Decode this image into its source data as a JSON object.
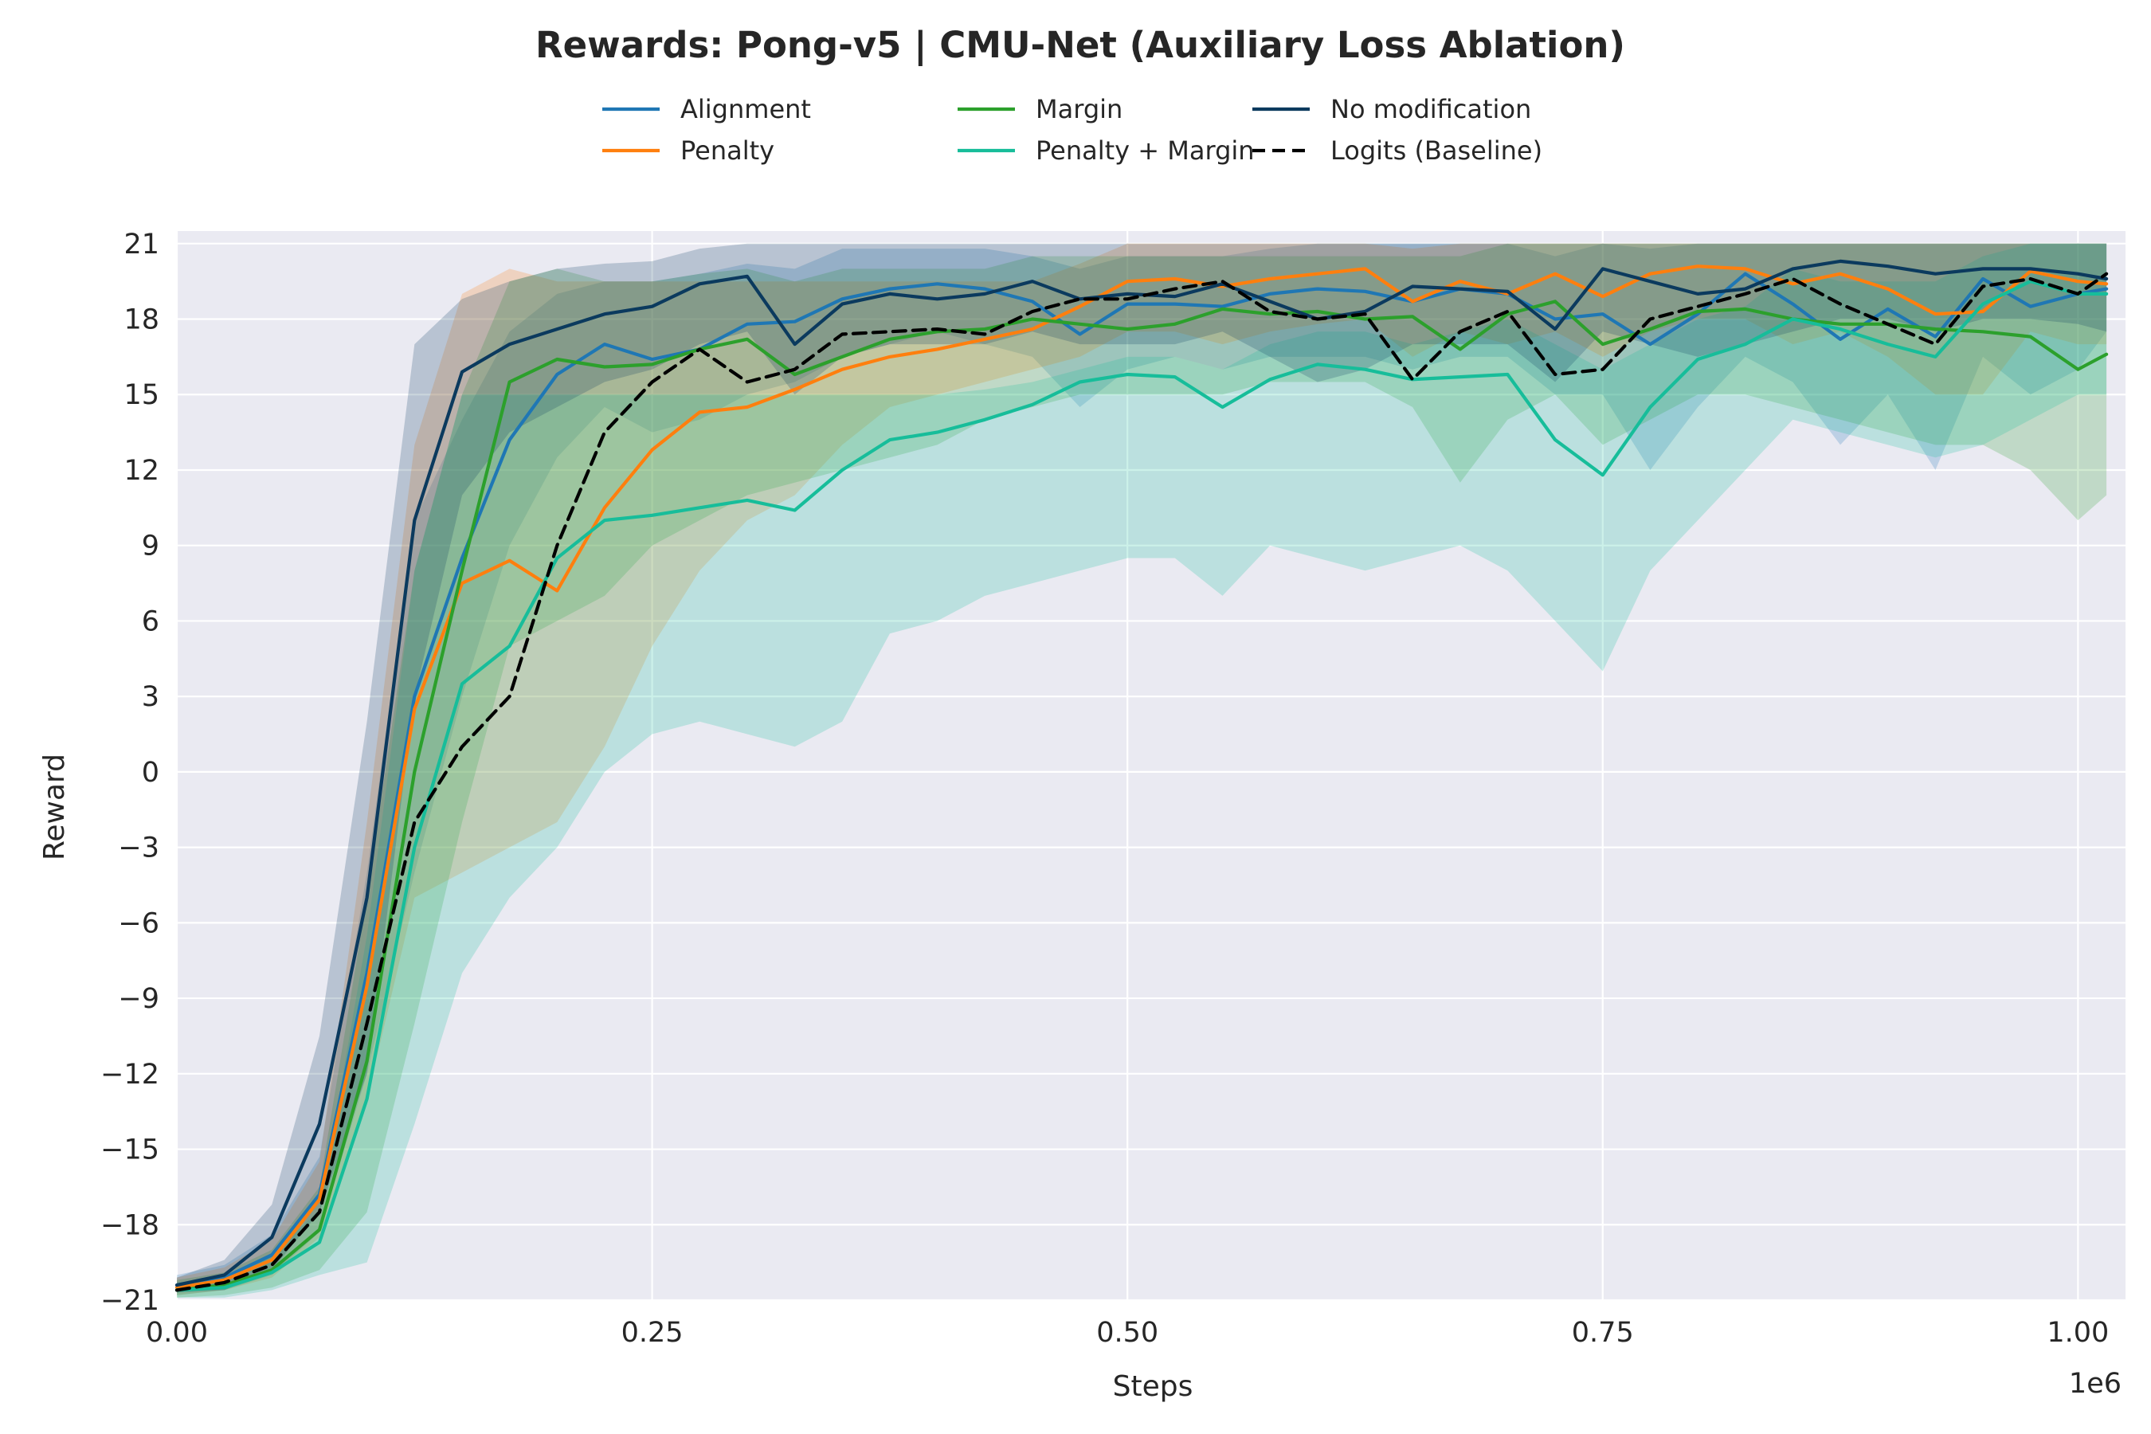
{
  "chart_data": {
    "type": "line",
    "title": "Rewards: Pong-v5 | CMU-Net (Auxiliary Loss Ablation)",
    "xlabel": "Steps",
    "ylabel": "Reward",
    "x_offset_label": "1e6",
    "xlim": [
      0,
      1.025
    ],
    "ylim": [
      -21,
      21.5
    ],
    "xticks": [
      0.0,
      0.25,
      0.5,
      0.75,
      1.0
    ],
    "xtick_labels": [
      "0.00",
      "0.25",
      "0.50",
      "0.75",
      "1.00"
    ],
    "yticks": [
      -21,
      -18,
      -15,
      -12,
      -9,
      -6,
      -3,
      0,
      3,
      6,
      9,
      12,
      15,
      18,
      21
    ],
    "ytick_labels": [
      "−21",
      "−18",
      "−15",
      "−12",
      "−9",
      "−6",
      "−3",
      "0",
      "3",
      "6",
      "9",
      "12",
      "15",
      "18",
      "21"
    ],
    "grid": true,
    "legend_position": "top-center",
    "x": [
      0.0,
      0.025,
      0.05,
      0.075,
      0.1,
      0.125,
      0.15,
      0.175,
      0.2,
      0.225,
      0.25,
      0.275,
      0.3,
      0.325,
      0.35,
      0.375,
      0.4,
      0.425,
      0.45,
      0.475,
      0.5,
      0.525,
      0.55,
      0.575,
      0.6,
      0.625,
      0.65,
      0.675,
      0.7,
      0.725,
      0.75,
      0.775,
      0.8,
      0.825,
      0.85,
      0.875,
      0.9,
      0.925,
      0.95,
      0.975,
      1.0,
      1.015
    ],
    "series": [
      {
        "name": "Alignment",
        "color": "#1f77b4",
        "dash": false,
        "values": [
          -20.4,
          -20.1,
          -19.2,
          -16.8,
          -8.0,
          3.0,
          8.5,
          13.2,
          15.8,
          17.0,
          16.4,
          16.8,
          17.8,
          17.9,
          18.8,
          19.2,
          19.4,
          19.2,
          18.7,
          17.4,
          18.6,
          18.6,
          18.5,
          19.0,
          19.2,
          19.1,
          18.7,
          19.2,
          19.0,
          18.0,
          18.2,
          17.0,
          18.2,
          19.8,
          18.6,
          17.2,
          18.4,
          17.3,
          19.6,
          18.5,
          19.0,
          19.2
        ],
        "lower": [
          -20.8,
          -20.6,
          -20.0,
          -18.3,
          -12.0,
          -4.0,
          3.0,
          9.0,
          12.5,
          14.5,
          13.5,
          14.0,
          15.0,
          15.5,
          16.5,
          17.0,
          17.5,
          17.0,
          16.5,
          14.5,
          16.0,
          16.5,
          16.0,
          16.5,
          16.5,
          16.5,
          16.0,
          16.5,
          16.5,
          15.0,
          15.0,
          12.0,
          14.5,
          16.5,
          15.5,
          13.0,
          15.0,
          12.0,
          16.5,
          15.0,
          16.0,
          17.5
        ],
        "upper": [
          -20.0,
          -19.6,
          -18.4,
          -15.3,
          -4.0,
          10.0,
          14.0,
          17.5,
          19.0,
          19.5,
          19.5,
          19.8,
          20.2,
          20.0,
          20.8,
          20.8,
          20.8,
          20.8,
          20.5,
          20.0,
          20.5,
          20.5,
          20.5,
          20.8,
          21.0,
          21.0,
          21.0,
          21.0,
          21.0,
          20.5,
          21.0,
          20.8,
          21.0,
          21.0,
          21.0,
          21.0,
          21.0,
          21.0,
          21.0,
          21.0,
          21.0,
          21.0
        ]
      },
      {
        "name": "Penalty",
        "color": "#ff7f0e",
        "dash": false,
        "values": [
          -20.5,
          -20.2,
          -19.4,
          -17.0,
          -8.5,
          2.5,
          7.5,
          8.4,
          7.2,
          10.5,
          12.8,
          14.3,
          14.5,
          15.2,
          16.0,
          16.5,
          16.8,
          17.2,
          17.6,
          18.5,
          19.5,
          19.6,
          19.3,
          19.6,
          19.8,
          20.0,
          18.7,
          19.5,
          19.0,
          19.8,
          18.9,
          19.8,
          20.1,
          20.0,
          19.4,
          19.8,
          19.2,
          18.2,
          18.3,
          19.9,
          19.5,
          19.4
        ],
        "lower": [
          -20.8,
          -20.6,
          -20.1,
          -18.5,
          -13.0,
          -5.0,
          -4.0,
          -3.0,
          -2.0,
          1.0,
          5.0,
          8.0,
          10.0,
          11.0,
          13.0,
          14.5,
          15.0,
          15.5,
          16.0,
          16.5,
          17.5,
          17.5,
          17.0,
          17.5,
          17.8,
          18.0,
          16.5,
          17.5,
          17.0,
          17.5,
          16.5,
          17.5,
          18.0,
          18.0,
          17.0,
          17.5,
          16.5,
          15.0,
          15.0,
          17.5,
          17.0,
          17.0
        ],
        "upper": [
          -20.1,
          -19.7,
          -18.6,
          -15.5,
          -2.0,
          13.0,
          19.0,
          20.0,
          19.5,
          19.5,
          19.5,
          19.5,
          19.5,
          19.5,
          19.5,
          19.5,
          19.5,
          19.5,
          19.5,
          20.2,
          21.0,
          21.0,
          21.0,
          21.0,
          21.0,
          21.0,
          20.8,
          21.0,
          21.0,
          21.0,
          21.0,
          21.0,
          21.0,
          21.0,
          21.0,
          21.0,
          21.0,
          21.0,
          21.0,
          21.0,
          21.0,
          21.0
        ]
      },
      {
        "name": "Margin",
        "color": "#2ca02c",
        "dash": false,
        "values": [
          -20.6,
          -20.4,
          -19.8,
          -18.2,
          -11.5,
          0.0,
          8.0,
          15.5,
          16.4,
          16.1,
          16.2,
          16.8,
          17.2,
          15.8,
          16.5,
          17.2,
          17.5,
          17.6,
          18.0,
          17.8,
          17.6,
          17.8,
          18.4,
          18.2,
          18.3,
          18.0,
          18.1,
          16.8,
          18.2,
          18.7,
          17.0,
          17.6,
          18.3,
          18.4,
          18.0,
          17.8,
          17.8,
          17.6,
          17.5,
          17.3,
          16.0,
          16.6
        ],
        "lower": [
          -20.9,
          -20.8,
          -20.5,
          -19.8,
          -17.5,
          -10.0,
          -2.0,
          5.0,
          6.0,
          7.0,
          9.0,
          10.0,
          11.0,
          11.5,
          12.0,
          12.5,
          13.0,
          14.0,
          14.5,
          15.0,
          15.0,
          15.0,
          15.0,
          15.5,
          15.5,
          15.5,
          14.5,
          11.5,
          14.0,
          15.0,
          13.0,
          14.0,
          15.0,
          15.0,
          14.5,
          14.0,
          13.5,
          13.0,
          13.0,
          12.0,
          10.0,
          11.0
        ],
        "upper": [
          -20.2,
          -19.9,
          -19.0,
          -16.5,
          -5.0,
          8.0,
          15.0,
          19.5,
          20.0,
          19.5,
          19.5,
          19.8,
          20.0,
          19.5,
          20.0,
          20.0,
          20.0,
          20.0,
          20.5,
          20.5,
          20.5,
          20.5,
          20.5,
          20.5,
          20.5,
          20.5,
          20.5,
          20.5,
          21.0,
          21.0,
          21.0,
          21.0,
          21.0,
          21.0,
          21.0,
          21.0,
          21.0,
          21.0,
          21.0,
          21.0,
          21.0,
          21.0
        ]
      },
      {
        "name": "Penalty + Margin",
        "color": "#17bd9a",
        "dash": false,
        "values": [
          -20.6,
          -20.5,
          -19.9,
          -18.7,
          -13.0,
          -3.0,
          3.5,
          5.0,
          8.5,
          10.0,
          10.2,
          10.5,
          10.8,
          10.4,
          12.0,
          13.2,
          13.5,
          14.0,
          14.6,
          15.5,
          15.8,
          15.7,
          14.5,
          15.6,
          16.2,
          16.0,
          15.6,
          15.7,
          15.8,
          13.2,
          11.8,
          14.5,
          16.4,
          17.0,
          18.0,
          17.6,
          17.0,
          16.5,
          18.6,
          19.5,
          19.0,
          19.0
        ],
        "lower": [
          -20.9,
          -20.9,
          -20.6,
          -20.0,
          -19.5,
          -14.0,
          -8.0,
          -5.0,
          -3.0,
          0.0,
          1.5,
          2.0,
          1.5,
          1.0,
          2.0,
          5.5,
          6.0,
          7.0,
          7.5,
          8.0,
          8.5,
          8.5,
          7.0,
          9.0,
          8.5,
          8.0,
          8.5,
          9.0,
          8.0,
          6.0,
          4.0,
          8.0,
          10.0,
          12.0,
          14.0,
          13.5,
          13.0,
          12.5,
          13.0,
          14.0,
          15.0,
          15.0
        ],
        "upper": [
          -20.3,
          -20.1,
          -19.2,
          -17.4,
          -6.5,
          8.0,
          15.0,
          15.0,
          15.0,
          15.0,
          15.0,
          15.0,
          15.0,
          15.0,
          15.0,
          15.0,
          15.0,
          15.2,
          15.5,
          16.0,
          16.5,
          16.5,
          16.0,
          17.0,
          17.5,
          17.5,
          17.0,
          17.5,
          18.0,
          17.0,
          16.0,
          17.0,
          18.0,
          18.5,
          20.0,
          19.5,
          19.5,
          19.5,
          20.5,
          21.0,
          21.0,
          21.0
        ]
      },
      {
        "name": "No modification",
        "color": "#0b3a5e",
        "dash": false,
        "values": [
          -20.4,
          -20.0,
          -18.5,
          -14.0,
          -5.0,
          10.0,
          15.9,
          17.0,
          17.6,
          18.2,
          18.5,
          19.4,
          19.7,
          17.0,
          18.6,
          19.0,
          18.8,
          19.0,
          19.5,
          18.8,
          19.0,
          18.9,
          19.4,
          18.7,
          18.0,
          18.3,
          19.3,
          19.2,
          19.1,
          17.6,
          20.0,
          19.5,
          19.0,
          19.2,
          20.0,
          20.3,
          20.1,
          19.8,
          20.0,
          20.0,
          19.8,
          19.6
        ],
        "lower": [
          -20.7,
          -20.6,
          -19.8,
          -17.5,
          -12.0,
          3.0,
          11.0,
          13.5,
          14.5,
          15.5,
          16.0,
          17.0,
          17.5,
          15.0,
          16.5,
          17.0,
          17.0,
          17.0,
          17.5,
          17.0,
          17.0,
          17.0,
          17.5,
          16.5,
          15.5,
          16.0,
          17.0,
          17.0,
          17.0,
          15.5,
          17.5,
          17.0,
          16.5,
          17.0,
          17.5,
          18.0,
          18.0,
          17.5,
          18.0,
          18.0,
          17.8,
          17.5
        ],
        "upper": [
          -20.1,
          -19.4,
          -17.2,
          -10.5,
          2.0,
          17.0,
          18.8,
          19.5,
          20.0,
          20.2,
          20.3,
          20.8,
          21.0,
          21.0,
          21.0,
          21.0,
          21.0,
          21.0,
          21.0,
          21.0,
          21.0,
          21.0,
          21.0,
          21.0,
          21.0,
          21.0,
          21.0,
          21.0,
          21.0,
          21.0,
          21.0,
          21.0,
          21.0,
          21.0,
          21.0,
          21.0,
          21.0,
          21.0,
          21.0,
          21.0,
          21.0,
          21.0
        ]
      },
      {
        "name": "Logits (Baseline)",
        "color": "#000000",
        "dash": true,
        "values": [
          -20.6,
          -20.3,
          -19.6,
          -17.5,
          -10.0,
          -2.0,
          1.0,
          3.0,
          9.0,
          13.5,
          15.5,
          16.8,
          15.5,
          16.0,
          17.4,
          17.5,
          17.6,
          17.4,
          18.3,
          18.8,
          18.8,
          19.2,
          19.5,
          18.3,
          18.0,
          18.2,
          15.6,
          17.5,
          18.3,
          15.8,
          16.0,
          18.0,
          18.5,
          19.0,
          19.6,
          18.6,
          17.8,
          17.0,
          19.3,
          19.6,
          19.0,
          19.8
        ],
        "lower": [
          -20.6,
          -20.3,
          -19.6,
          -17.5,
          -10.0,
          -2.0,
          1.0,
          3.0,
          9.0,
          13.5,
          15.5,
          16.8,
          15.5,
          16.0,
          17.4,
          17.5,
          17.6,
          17.4,
          18.3,
          18.8,
          18.8,
          19.2,
          19.5,
          18.3,
          18.0,
          18.2,
          15.6,
          17.5,
          18.3,
          15.8,
          16.0,
          18.0,
          18.5,
          19.0,
          19.6,
          18.6,
          17.8,
          17.0,
          19.3,
          19.6,
          19.0,
          19.8
        ],
        "upper": [
          -20.6,
          -20.3,
          -19.6,
          -17.5,
          -10.0,
          -2.0,
          1.0,
          3.0,
          9.0,
          13.5,
          15.5,
          16.8,
          15.5,
          16.0,
          17.4,
          17.5,
          17.6,
          17.4,
          18.3,
          18.8,
          18.8,
          19.2,
          19.5,
          18.3,
          18.0,
          18.2,
          15.6,
          17.5,
          18.3,
          15.8,
          16.0,
          18.0,
          18.5,
          19.0,
          19.6,
          18.6,
          17.8,
          17.0,
          19.3,
          19.6,
          19.0,
          19.8
        ]
      }
    ]
  }
}
